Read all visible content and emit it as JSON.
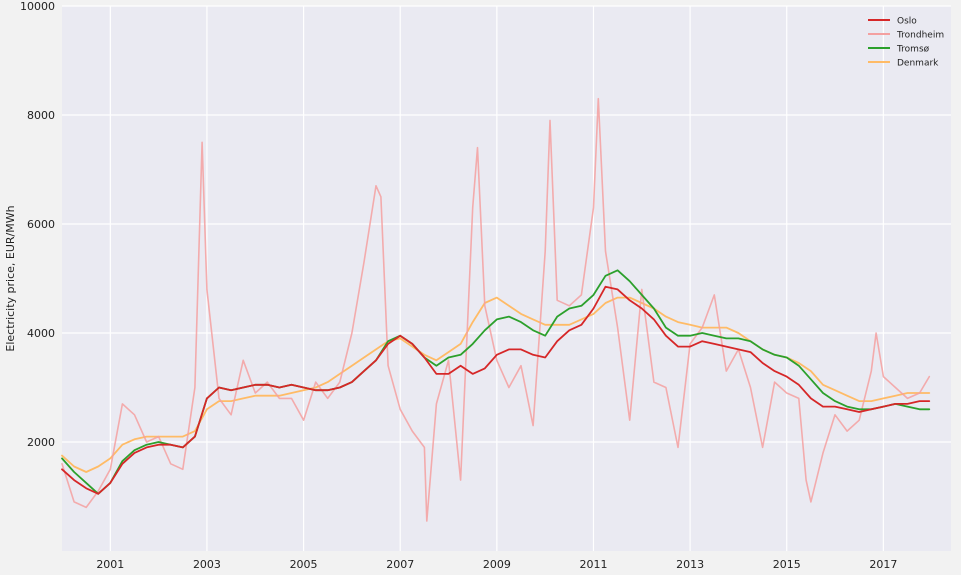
{
  "chart_data": {
    "type": "line",
    "title": "",
    "xlabel": "",
    "ylabel": "Electricity price, EUR/MWh",
    "xlim": [
      2000.0,
      2018.4
    ],
    "ylim": [
      0,
      10000
    ],
    "x_ticks": [
      2001,
      2003,
      2005,
      2007,
      2009,
      2011,
      2013,
      2015,
      2017
    ],
    "y_ticks": [
      2000,
      4000,
      6000,
      8000,
      10000
    ],
    "grid": true,
    "legend_position": "top-right",
    "colors": {
      "plot_background": "#eaeaf2",
      "figure_background": "#f2f2f2",
      "grid": "#ffffff"
    },
    "series": [
      {
        "name": "Oslo",
        "color": "#d62728",
        "style": "smoothed",
        "x": [
          2000.0,
          2000.25,
          2000.5,
          2000.75,
          2001.0,
          2001.25,
          2001.5,
          2001.75,
          2002.0,
          2002.25,
          2002.5,
          2002.75,
          2003.0,
          2003.25,
          2003.5,
          2003.75,
          2004.0,
          2004.25,
          2004.5,
          2004.75,
          2005.0,
          2005.25,
          2005.5,
          2005.75,
          2006.0,
          2006.25,
          2006.5,
          2006.75,
          2007.0,
          2007.25,
          2007.5,
          2007.75,
          2008.0,
          2008.25,
          2008.5,
          2008.75,
          2009.0,
          2009.25,
          2009.5,
          2009.75,
          2010.0,
          2010.25,
          2010.5,
          2010.75,
          2011.0,
          2011.25,
          2011.5,
          2011.75,
          2012.0,
          2012.25,
          2012.5,
          2012.75,
          2013.0,
          2013.25,
          2013.5,
          2013.75,
          2014.0,
          2014.25,
          2014.5,
          2014.75,
          2015.0,
          2015.25,
          2015.5,
          2015.75,
          2016.0,
          2016.25,
          2016.5,
          2016.75,
          2017.0,
          2017.25,
          2017.5,
          2017.75,
          2017.95
        ],
        "y": [
          1500,
          1300,
          1150,
          1050,
          1250,
          1600,
          1800,
          1900,
          1950,
          1950,
          1900,
          2100,
          2800,
          3000,
          2950,
          3000,
          3050,
          3050,
          3000,
          3050,
          3000,
          2950,
          2950,
          3000,
          3100,
          3300,
          3500,
          3800,
          3950,
          3800,
          3550,
          3250,
          3250,
          3400,
          3250,
          3350,
          3600,
          3700,
          3700,
          3600,
          3550,
          3850,
          4050,
          4150,
          4450,
          4850,
          4800,
          4600,
          4450,
          4250,
          3950,
          3750,
          3750,
          3850,
          3800,
          3750,
          3700,
          3650,
          3450,
          3300,
          3200,
          3050,
          2800,
          2650,
          2650,
          2600,
          2550,
          2600,
          2650,
          2700,
          2700,
          2750,
          2750
        ]
      },
      {
        "name": "Trondheim",
        "color": "#f4a0a0",
        "style": "raw",
        "x": [
          2000.0,
          2000.25,
          2000.5,
          2000.75,
          2001.0,
          2001.25,
          2001.5,
          2001.75,
          2002.0,
          2002.25,
          2002.5,
          2002.75,
          2002.9,
          2003.0,
          2003.25,
          2003.5,
          2003.75,
          2004.0,
          2004.25,
          2004.5,
          2004.75,
          2005.0,
          2005.25,
          2005.5,
          2005.75,
          2006.0,
          2006.25,
          2006.5,
          2006.6,
          2006.75,
          2007.0,
          2007.25,
          2007.5,
          2007.55,
          2007.75,
          2008.0,
          2008.25,
          2008.5,
          2008.6,
          2008.75,
          2009.0,
          2009.25,
          2009.5,
          2009.75,
          2010.0,
          2010.1,
          2010.25,
          2010.5,
          2010.75,
          2011.0,
          2011.1,
          2011.25,
          2011.5,
          2011.75,
          2012.0,
          2012.25,
          2012.5,
          2012.75,
          2013.0,
          2013.25,
          2013.5,
          2013.75,
          2014.0,
          2014.25,
          2014.5,
          2014.75,
          2015.0,
          2015.25,
          2015.4,
          2015.5,
          2015.75,
          2016.0,
          2016.25,
          2016.5,
          2016.75,
          2016.85,
          2017.0,
          2017.25,
          2017.5,
          2017.75,
          2017.95
        ],
        "y": [
          1600,
          900,
          800,
          1100,
          1500,
          2700,
          2500,
          2000,
          2100,
          1600,
          1500,
          3000,
          7500,
          4800,
          2800,
          2500,
          3500,
          2900,
          3100,
          2800,
          2800,
          2400,
          3100,
          2800,
          3100,
          4000,
          5300,
          6700,
          6500,
          3400,
          2600,
          2200,
          1900,
          550,
          2700,
          3500,
          1300,
          6300,
          7400,
          4500,
          3500,
          3000,
          3400,
          2300,
          5500,
          7900,
          4600,
          4500,
          4700,
          6300,
          8300,
          5500,
          4100,
          2400,
          4800,
          3100,
          3000,
          1900,
          3800,
          4100,
          4700,
          3300,
          3700,
          3000,
          1900,
          3100,
          2900,
          2800,
          1300,
          900,
          1800,
          2500,
          2200,
          2400,
          3300,
          4000,
          3200,
          3000,
          2800,
          2900,
          3200
        ]
      },
      {
        "name": "Tromsø",
        "color": "#2ca02c",
        "style": "smoothed",
        "x": [
          2000.0,
          2000.25,
          2000.5,
          2000.75,
          2001.0,
          2001.25,
          2001.5,
          2001.75,
          2002.0,
          2002.25,
          2002.5,
          2002.75,
          2003.0,
          2003.25,
          2003.5,
          2003.75,
          2004.0,
          2004.25,
          2004.5,
          2004.75,
          2005.0,
          2005.25,
          2005.5,
          2005.75,
          2006.0,
          2006.25,
          2006.5,
          2006.75,
          2007.0,
          2007.25,
          2007.5,
          2007.75,
          2008.0,
          2008.25,
          2008.5,
          2008.75,
          2009.0,
          2009.25,
          2009.5,
          2009.75,
          2010.0,
          2010.25,
          2010.5,
          2010.75,
          2011.0,
          2011.25,
          2011.5,
          2011.75,
          2012.0,
          2012.25,
          2012.5,
          2012.75,
          2013.0,
          2013.25,
          2013.5,
          2013.75,
          2014.0,
          2014.25,
          2014.5,
          2014.75,
          2015.0,
          2015.25,
          2015.5,
          2015.75,
          2016.0,
          2016.25,
          2016.5,
          2016.75,
          2017.0,
          2017.25,
          2017.5,
          2017.75,
          2017.95
        ],
        "y": [
          1700,
          1450,
          1250,
          1050,
          1250,
          1650,
          1850,
          1950,
          2000,
          1950,
          1900,
          2100,
          2800,
          3000,
          2950,
          3000,
          3050,
          3050,
          3000,
          3050,
          3000,
          2950,
          2950,
          3000,
          3100,
          3300,
          3500,
          3850,
          3950,
          3800,
          3550,
          3400,
          3550,
          3600,
          3800,
          4050,
          4250,
          4300,
          4200,
          4050,
          3950,
          4300,
          4450,
          4500,
          4700,
          5050,
          5150,
          4950,
          4700,
          4450,
          4100,
          3950,
          3950,
          4000,
          3950,
          3900,
          3900,
          3850,
          3700,
          3600,
          3550,
          3400,
          3150,
          2900,
          2750,
          2650,
          2600,
          2600,
          2650,
          2700,
          2650,
          2600,
          2600
        ]
      },
      {
        "name": "Denmark",
        "color": "#ffbb66",
        "style": "smoothed",
        "x": [
          2000.0,
          2000.25,
          2000.5,
          2000.75,
          2001.0,
          2001.25,
          2001.5,
          2001.75,
          2002.0,
          2002.25,
          2002.5,
          2002.75,
          2003.0,
          2003.25,
          2003.5,
          2003.75,
          2004.0,
          2004.25,
          2004.5,
          2004.75,
          2005.0,
          2005.25,
          2005.5,
          2005.75,
          2006.0,
          2006.25,
          2006.5,
          2006.75,
          2007.0,
          2007.25,
          2007.5,
          2007.75,
          2008.0,
          2008.25,
          2008.5,
          2008.75,
          2009.0,
          2009.25,
          2009.5,
          2009.75,
          2010.0,
          2010.25,
          2010.5,
          2010.75,
          2011.0,
          2011.25,
          2011.5,
          2011.75,
          2012.0,
          2012.25,
          2012.5,
          2012.75,
          2013.0,
          2013.25,
          2013.5,
          2013.75,
          2014.0,
          2014.25,
          2014.5,
          2014.75,
          2015.0,
          2015.25,
          2015.5,
          2015.75,
          2016.0,
          2016.25,
          2016.5,
          2016.75,
          2017.0,
          2017.25,
          2017.5,
          2017.75,
          2017.95
        ],
        "y": [
          1750,
          1550,
          1450,
          1550,
          1700,
          1950,
          2050,
          2100,
          2100,
          2100,
          2100,
          2200,
          2600,
          2750,
          2750,
          2800,
          2850,
          2850,
          2850,
          2900,
          2950,
          3000,
          3100,
          3250,
          3400,
          3550,
          3700,
          3850,
          3900,
          3750,
          3600,
          3500,
          3650,
          3800,
          4200,
          4550,
          4650,
          4500,
          4350,
          4250,
          4150,
          4150,
          4150,
          4250,
          4350,
          4550,
          4650,
          4650,
          4550,
          4450,
          4300,
          4200,
          4150,
          4100,
          4100,
          4100,
          4000,
          3850,
          3700,
          3600,
          3550,
          3450,
          3300,
          3050,
          2950,
          2850,
          2750,
          2750,
          2800,
          2850,
          2900,
          2900,
          2900
        ]
      }
    ]
  }
}
